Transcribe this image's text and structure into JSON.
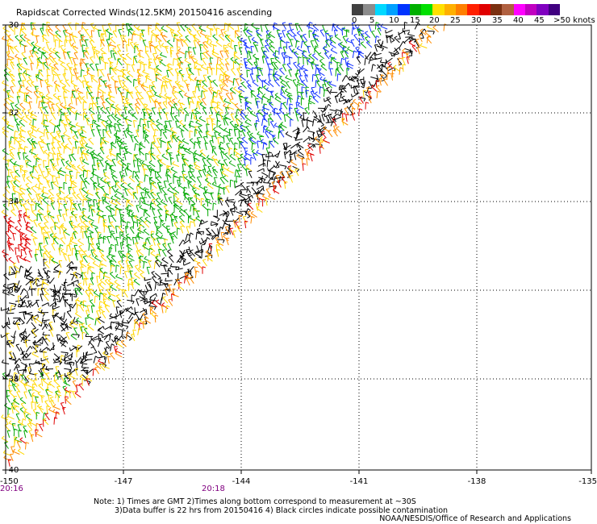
{
  "title": "Rapidscat Corrected Winds(12.5KM) 20150416 ascending",
  "legend": {
    "labels": [
      "0",
      "5",
      "10",
      "15",
      "20",
      "25",
      "30",
      "35",
      "40",
      "45",
      ">50 knots"
    ],
    "colors": [
      "#404040",
      "#8c8c8c",
      "#00d8ff",
      "#00a0ff",
      "#0033ff",
      "#00b000",
      "#00e000",
      "#ffe000",
      "#ffb000",
      "#ff7f00",
      "#ff2000",
      "#e00000",
      "#7a3010",
      "#b06040",
      "#ff00ff",
      "#c000c0",
      "#8000c0",
      "#400080"
    ]
  },
  "axes": {
    "lat_labels": [
      "-30",
      "-32",
      "-34",
      "-36",
      "-38",
      "-40"
    ],
    "lon_labels": [
      "-150",
      "-147",
      "-144",
      "-141",
      "-138",
      "-135"
    ]
  },
  "times": [
    "20:16",
    "20:18"
  ],
  "notes": [
    "Note: 1) Times are GMT 2)Times along bottom correspond to measurement at ~30S",
    "3)Data buffer is 22 hrs from 20150416 4) Black circles indicate possible contamination"
  ],
  "credit": "NOAA/NESDIS/Office of Research and Applications",
  "wind_colors": {
    "calm": "#000000",
    "blue": "#1030ff",
    "green": "#00a800",
    "yellow": "#ffd700",
    "orange": "#ff8c00",
    "red": "#e00000"
  }
}
